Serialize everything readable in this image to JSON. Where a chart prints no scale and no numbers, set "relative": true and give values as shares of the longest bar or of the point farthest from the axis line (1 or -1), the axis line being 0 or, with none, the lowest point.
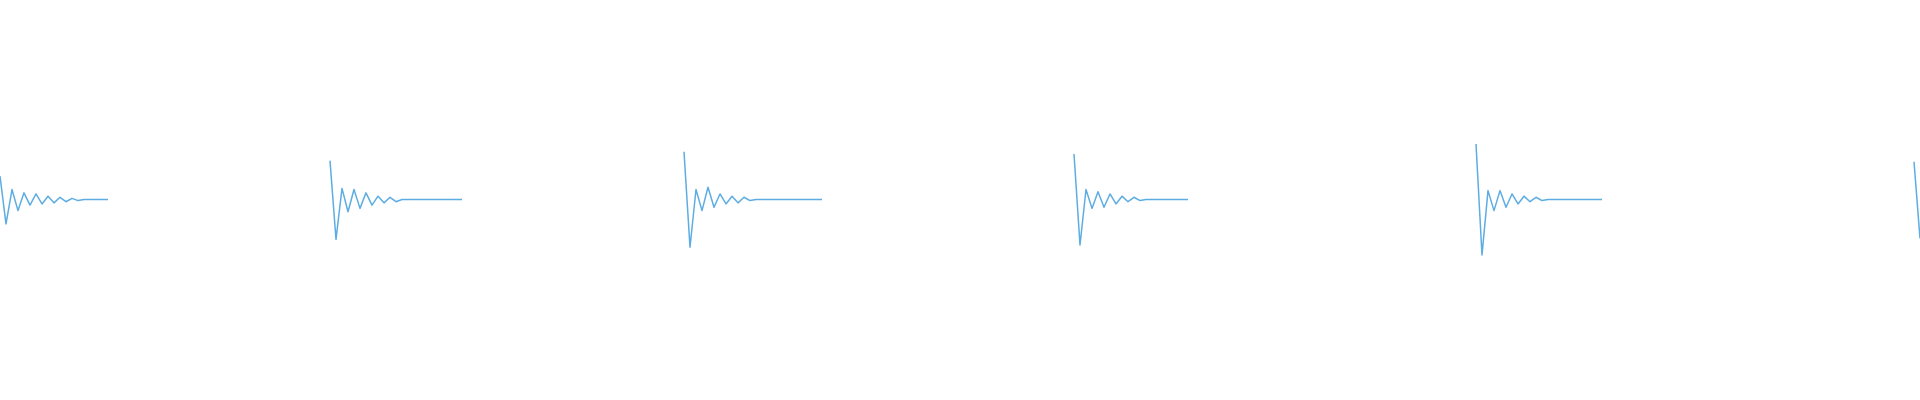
{
  "chart_data": {
    "type": "line",
    "relative": true,
    "categories": [
      null,
      null,
      null,
      null,
      null,
      null,
      null,
      null,
      null,
      null,
      null,
      null,
      null,
      null,
      null,
      null,
      null,
      null,
      null,
      null,
      null,
      null,
      null,
      null,
      null,
      null,
      null,
      null,
      null,
      null,
      null,
      null,
      null,
      null,
      null,
      null,
      null,
      null,
      null,
      null,
      null,
      null,
      null,
      null,
      null,
      null,
      null,
      null,
      null,
      null,
      null,
      null,
      null,
      null,
      null,
      null,
      null,
      null,
      null,
      null,
      null,
      null,
      null,
      null,
      null,
      null,
      null,
      null,
      null,
      null,
      null,
      null,
      null,
      null,
      null,
      null,
      null,
      null,
      null,
      null,
      null,
      null,
      null,
      null,
      null,
      null,
      null,
      null,
      null,
      null,
      null,
      null,
      null,
      null,
      null,
      null,
      null,
      null,
      null,
      null,
      null,
      null,
      null,
      null,
      null,
      null,
      null,
      null,
      null,
      null,
      null,
      null,
      null,
      null,
      null,
      null,
      null,
      null,
      null,
      null,
      null,
      null,
      null,
      null,
      null,
      null,
      null,
      null,
      null,
      null,
      null,
      null,
      null,
      null,
      null,
      null,
      null,
      null,
      null,
      null,
      null,
      null,
      null,
      null,
      null,
      null,
      null,
      null,
      null,
      null,
      null,
      null,
      null,
      null,
      null,
      null,
      null,
      null,
      null,
      null,
      null,
      null,
      null,
      null,
      null,
      null,
      null,
      null,
      null,
      null,
      null,
      null,
      null,
      null,
      null,
      null,
      null,
      null,
      null,
      null,
      null,
      null,
      null,
      null,
      null,
      null,
      null,
      null,
      null,
      null,
      null,
      null,
      null,
      null,
      null,
      null,
      null,
      null,
      null,
      null,
      null,
      null,
      null,
      null,
      null,
      null,
      null,
      null,
      null,
      null,
      null,
      null,
      null,
      null,
      null,
      null,
      null,
      null,
      null,
      null,
      null,
      null,
      null,
      null,
      null,
      null,
      null,
      null,
      null,
      null,
      null,
      null,
      null,
      null,
      null,
      null,
      null,
      null,
      null,
      null,
      null,
      null,
      null,
      null,
      null,
      null,
      null,
      null,
      null,
      null,
      null,
      null,
      null,
      null,
      null,
      null,
      null,
      null,
      null,
      null,
      null,
      null,
      null,
      null,
      null,
      null,
      null,
      null,
      null,
      null,
      null,
      null,
      null,
      null,
      null,
      null,
      null,
      null,
      null,
      null,
      null,
      null,
      null,
      null,
      null,
      null,
      null,
      null,
      null,
      null,
      null,
      null,
      null,
      null,
      null,
      null,
      null,
      null,
      null,
      null,
      null,
      null,
      null,
      null,
      null,
      null,
      null,
      null,
      null,
      null,
      null,
      null,
      null,
      null,
      null,
      null,
      null,
      null,
      null,
      null,
      null
    ],
    "series": [
      {
        "color": "#5dade2",
        "values": [
          0.71,
          0.28,
          0.59,
          0.4,
          0.56,
          0.45,
          0.55,
          0.46,
          0.53,
          0.47,
          0.52,
          0.48,
          0.51,
          0.49,
          0.5,
          0.5,
          0.5,
          0.5,
          0.5,
          null,
          null,
          null,
          null,
          null,
          null,
          null,
          null,
          null,
          null,
          null,
          null,
          null,
          null,
          null,
          null,
          null,
          null,
          null,
          null,
          null,
          null,
          null,
          null,
          null,
          null,
          null,
          null,
          null,
          null,
          null,
          null,
          null,
          null,
          null,
          null,
          null,
          null,
          null,
          null,
          null,
          null,
          null,
          null,
          null,
          null,
          null,
          null,
          null,
          null,
          null,
          null,
          null,
          null,
          null,
          null,
          null,
          null,
          null,
          null,
          null,
          null,
          null,
          null,
          null,
          null,
          null,
          null,
          null,
          null,
          null,
          null,
          null,
          null,
          null,
          null,
          null,
          null,
          null,
          null,
          null,
          null,
          null,
          null,
          null,
          null,
          null,
          null,
          null,
          null,
          null,
          null,
          null,
          null,
          null,
          null,
          null,
          null,
          null,
          null,
          null,
          null,
          null,
          null,
          null,
          null,
          null,
          null,
          null,
          null,
          null,
          null,
          null,
          null,
          null,
          null,
          null,
          null,
          null,
          null,
          null,
          null,
          null,
          null,
          null,
          null,
          null,
          null,
          null,
          null,
          null,
          null,
          null,
          null,
          null,
          null,
          null,
          null,
          null,
          null,
          null,
          null,
          null,
          null,
          null,
          null,
          null,
          null,
          null,
          null,
          null,
          null,
          null,
          null,
          null,
          null,
          null,
          null,
          null,
          null,
          null,
          null,
          null,
          null,
          null,
          null,
          null,
          null,
          null,
          null,
          null,
          null,
          null,
          null,
          null,
          null,
          null,
          null,
          null,
          null,
          null,
          null,
          null,
          null,
          null,
          null,
          null,
          null,
          null,
          null,
          null,
          null,
          null,
          null,
          null,
          null,
          null,
          null,
          null,
          null,
          null,
          null,
          null,
          null,
          null,
          null,
          null,
          null,
          null,
          null,
          null,
          null,
          null,
          null,
          null,
          null,
          null,
          null,
          null,
          null,
          null,
          null,
          null,
          null,
          null,
          null,
          null,
          null,
          null,
          null,
          null,
          null,
          null,
          null,
          null,
          null,
          null,
          null,
          null,
          null,
          null,
          null,
          null,
          null,
          null,
          null,
          null,
          null,
          null,
          null,
          null,
          null,
          null,
          null,
          null,
          null,
          null,
          null,
          null,
          null,
          null,
          null,
          null,
          null,
          null,
          null,
          null,
          null,
          null,
          null,
          null,
          null,
          null,
          null,
          null,
          null,
          null,
          null,
          null,
          null,
          null,
          null,
          null,
          null,
          null,
          null,
          null,
          null,
          null,
          null,
          null,
          null,
          null,
          null,
          null,
          null,
          null,
          null,
          null,
          null,
          null,
          null
        ]
      },
      {
        "color": "#5dade2",
        "values": [
          null,
          null,
          null,
          null,
          null,
          null,
          null,
          null,
          null,
          null,
          null,
          null,
          null,
          null,
          null,
          null,
          null,
          null,
          null,
          null,
          null,
          null,
          null,
          null,
          null,
          null,
          null,
          null,
          null,
          null,
          null,
          null,
          null,
          null,
          null,
          null,
          null,
          null,
          null,
          null,
          null,
          null,
          null,
          null,
          null,
          null,
          null,
          null,
          null,
          null,
          null,
          null,
          null,
          null,
          null,
          0.85,
          0.14,
          0.6,
          0.39,
          0.59,
          0.42,
          0.56,
          0.45,
          0.53,
          0.47,
          0.52,
          0.48,
          0.5,
          0.5,
          0.5,
          0.5,
          0.5,
          0.5,
          0.5,
          0.5,
          0.5,
          0.5,
          0.5,
          null,
          null,
          null,
          null,
          null,
          null,
          null,
          null,
          null,
          null,
          null,
          null,
          null,
          null,
          null,
          null,
          null,
          null,
          null,
          null,
          null,
          null,
          null,
          null,
          null,
          null,
          null,
          null,
          null,
          null,
          null,
          null,
          null,
          null,
          null,
          null,
          null,
          null,
          null,
          null,
          null,
          null,
          null,
          null,
          null,
          null,
          null,
          null,
          null,
          null,
          null,
          null,
          null,
          null,
          null,
          null,
          null,
          null,
          null,
          null,
          null,
          null,
          null,
          null,
          null,
          null,
          null,
          null,
          null,
          null,
          null,
          null,
          null,
          null,
          null,
          null,
          null,
          null,
          null,
          null,
          null,
          null,
          null,
          null,
          null,
          null,
          null,
          null,
          null,
          null,
          null,
          null,
          null,
          null,
          null,
          null,
          null,
          null,
          null,
          null,
          null,
          null,
          null,
          null,
          null,
          null,
          null,
          null,
          null,
          null,
          null,
          null,
          null,
          null,
          null,
          null,
          null,
          null,
          null,
          null,
          null,
          null,
          null,
          null,
          null,
          null,
          null,
          null,
          null,
          null,
          null,
          null,
          null,
          null,
          null,
          null,
          null,
          null,
          null,
          null,
          null,
          null,
          null,
          null,
          null,
          null,
          null,
          null,
          null,
          null,
          null,
          null,
          null,
          null,
          null,
          null,
          null,
          null,
          null,
          null,
          null,
          null,
          null,
          null,
          null,
          null,
          null,
          null,
          null,
          null,
          null,
          null,
          null,
          null,
          null,
          null,
          null,
          null,
          null,
          null,
          null,
          null,
          null,
          null,
          null,
          null,
          null,
          null,
          null,
          null,
          null,
          null,
          null,
          null,
          null,
          null,
          null,
          null,
          null,
          null,
          null,
          null,
          null,
          null,
          null,
          null,
          null,
          null,
          null,
          null,
          null,
          null,
          null,
          null,
          null,
          null,
          null,
          null,
          null,
          null,
          null,
          null,
          null,
          null,
          null,
          null,
          null,
          null,
          null,
          null,
          null,
          null,
          null,
          null,
          null,
          null,
          null,
          null,
          null,
          null,
          null,
          null,
          null
        ]
      },
      {
        "color": "#5dade2",
        "values": [
          null,
          null,
          null,
          null,
          null,
          null,
          null,
          null,
          null,
          null,
          null,
          null,
          null,
          null,
          null,
          null,
          null,
          null,
          null,
          null,
          null,
          null,
          null,
          null,
          null,
          null,
          null,
          null,
          null,
          null,
          null,
          null,
          null,
          null,
          null,
          null,
          null,
          null,
          null,
          null,
          null,
          null,
          null,
          null,
          null,
          null,
          null,
          null,
          null,
          null,
          null,
          null,
          null,
          null,
          null,
          null,
          null,
          null,
          null,
          null,
          null,
          null,
          null,
          null,
          null,
          null,
          null,
          null,
          null,
          null,
          null,
          null,
          null,
          null,
          null,
          null,
          null,
          null,
          null,
          null,
          null,
          null,
          null,
          null,
          null,
          null,
          null,
          null,
          null,
          null,
          null,
          null,
          null,
          null,
          null,
          null,
          null,
          null,
          null,
          null,
          null,
          null,
          null,
          null,
          null,
          null,
          null,
          null,
          null,
          null,
          null,
          null,
          null,
          null,
          0.93,
          0.07,
          0.59,
          0.4,
          0.61,
          0.43,
          0.55,
          0.46,
          0.53,
          0.47,
          0.52,
          0.49,
          0.5,
          0.5,
          0.5,
          0.5,
          0.5,
          0.5,
          0.5,
          0.5,
          0.5,
          0.5,
          0.5,
          0.5,
          null,
          null,
          null,
          null,
          null,
          null,
          null,
          null,
          null,
          null,
          null,
          null,
          null,
          null,
          null,
          null,
          null,
          null,
          null,
          null,
          null,
          null,
          null,
          null,
          null,
          null,
          null,
          null,
          null,
          null,
          null,
          null,
          null,
          null,
          null,
          null,
          null,
          null,
          null,
          null,
          null,
          null,
          null,
          null,
          null,
          null,
          null,
          null,
          null,
          null,
          null,
          null,
          null,
          null,
          null,
          null,
          null,
          null,
          null,
          null,
          null,
          null,
          null,
          null,
          null,
          null,
          null,
          null,
          null,
          null,
          null,
          null,
          null,
          null,
          null,
          null,
          null,
          null,
          null,
          null,
          null,
          null,
          null,
          null,
          null,
          null,
          null,
          null,
          null,
          null,
          null,
          null,
          null,
          null,
          null,
          null,
          null,
          null,
          null,
          null,
          null,
          null,
          null,
          null,
          null,
          null,
          null,
          null,
          null,
          null,
          null,
          null,
          null,
          null,
          null,
          null,
          null,
          null,
          null,
          null,
          null,
          null,
          null,
          null,
          null,
          null,
          null,
          null,
          null,
          null,
          null,
          null,
          null,
          null,
          null,
          null,
          null,
          null,
          null,
          null,
          null,
          null,
          null,
          null,
          null,
          null,
          null,
          null,
          null,
          null,
          null,
          null,
          null,
          null,
          null,
          null,
          null,
          null,
          null,
          null,
          null,
          null,
          null,
          null,
          null,
          null,
          null,
          null,
          null,
          null,
          null,
          null,
          null,
          null,
          null,
          null,
          null,
          null,
          null,
          null,
          null,
          null,
          null
        ]
      },
      {
        "color": "#5dade2",
        "values": [
          null,
          null,
          null,
          null,
          null,
          null,
          null,
          null,
          null,
          null,
          null,
          null,
          null,
          null,
          null,
          null,
          null,
          null,
          null,
          null,
          null,
          null,
          null,
          null,
          null,
          null,
          null,
          null,
          null,
          null,
          null,
          null,
          null,
          null,
          null,
          null,
          null,
          null,
          null,
          null,
          null,
          null,
          null,
          null,
          null,
          null,
          null,
          null,
          null,
          null,
          null,
          null,
          null,
          null,
          null,
          null,
          null,
          null,
          null,
          null,
          null,
          null,
          null,
          null,
          null,
          null,
          null,
          null,
          null,
          null,
          null,
          null,
          null,
          null,
          null,
          null,
          null,
          null,
          null,
          null,
          null,
          null,
          null,
          null,
          null,
          null,
          null,
          null,
          null,
          null,
          null,
          null,
          null,
          null,
          null,
          null,
          null,
          null,
          null,
          null,
          null,
          null,
          null,
          null,
          null,
          null,
          null,
          null,
          null,
          null,
          null,
          null,
          null,
          null,
          null,
          null,
          null,
          null,
          null,
          null,
          null,
          null,
          null,
          null,
          null,
          null,
          null,
          null,
          null,
          null,
          null,
          null,
          null,
          null,
          null,
          null,
          null,
          null,
          null,
          null,
          null,
          null,
          null,
          null,
          null,
          null,
          null,
          null,
          null,
          null,
          null,
          null,
          null,
          null,
          null,
          null,
          null,
          null,
          null,
          null,
          null,
          null,
          null,
          null,
          null,
          null,
          null,
          null,
          null,
          null,
          null,
          null,
          null,
          null,
          null,
          null,
          null,
          null,
          null,
          0.91,
          0.09,
          0.59,
          0.42,
          0.57,
          0.43,
          0.55,
          0.46,
          0.53,
          0.48,
          0.52,
          0.49,
          0.5,
          0.5,
          0.5,
          0.5,
          0.5,
          0.5,
          0.5,
          0.5,
          null,
          null,
          null,
          null,
          null,
          null,
          null,
          null,
          null,
          null,
          null,
          null,
          null,
          null,
          null,
          null,
          null,
          null,
          null,
          null,
          null,
          null,
          null,
          null,
          null,
          null,
          null,
          null,
          null,
          null,
          null,
          null,
          null,
          null,
          null,
          null,
          null,
          null,
          null,
          null,
          null,
          null,
          null,
          null,
          null,
          null,
          null,
          null,
          null,
          null,
          null,
          null,
          null,
          null,
          null,
          null,
          null,
          null,
          null,
          null,
          null,
          null,
          null,
          null,
          null,
          null,
          null,
          null,
          null,
          null,
          null,
          null,
          null,
          null,
          null,
          null,
          null,
          null,
          null,
          null,
          null,
          null,
          null,
          null,
          null,
          null,
          null,
          null,
          null,
          null,
          null,
          null,
          null,
          null,
          null,
          null,
          null,
          null,
          null,
          null,
          null,
          null,
          null,
          null,
          null,
          null,
          null,
          null,
          null,
          null,
          null,
          null,
          null,
          null,
          null,
          null,
          null,
          null,
          null,
          null,
          null,
          null
        ]
      },
      {
        "color": "#5dade2",
        "values": [
          null,
          null,
          null,
          null,
          null,
          null,
          null,
          null,
          null,
          null,
          null,
          null,
          null,
          null,
          null,
          null,
          null,
          null,
          null,
          null,
          null,
          null,
          null,
          null,
          null,
          null,
          null,
          null,
          null,
          null,
          null,
          null,
          null,
          null,
          null,
          null,
          null,
          null,
          null,
          null,
          null,
          null,
          null,
          null,
          null,
          null,
          null,
          null,
          null,
          null,
          null,
          null,
          null,
          null,
          null,
          null,
          null,
          null,
          null,
          null,
          null,
          null,
          null,
          null,
          null,
          null,
          null,
          null,
          null,
          null,
          null,
          null,
          null,
          null,
          null,
          null,
          null,
          null,
          null,
          null,
          null,
          null,
          null,
          null,
          null,
          null,
          null,
          null,
          null,
          null,
          null,
          null,
          null,
          null,
          null,
          null,
          null,
          null,
          null,
          null,
          null,
          null,
          null,
          null,
          null,
          null,
          null,
          null,
          null,
          null,
          null,
          null,
          null,
          null,
          null,
          null,
          null,
          null,
          null,
          null,
          null,
          null,
          null,
          null,
          null,
          null,
          null,
          null,
          null,
          null,
          null,
          null,
          null,
          null,
          null,
          null,
          null,
          null,
          null,
          null,
          null,
          null,
          null,
          null,
          null,
          null,
          null,
          null,
          null,
          null,
          null,
          null,
          null,
          null,
          null,
          null,
          null,
          null,
          null,
          null,
          null,
          null,
          null,
          null,
          null,
          null,
          null,
          null,
          null,
          null,
          null,
          null,
          null,
          null,
          null,
          null,
          null,
          null,
          null,
          null,
          null,
          null,
          null,
          null,
          null,
          null,
          null,
          null,
          null,
          null,
          null,
          null,
          null,
          null,
          null,
          null,
          null,
          null,
          null,
          null,
          null,
          null,
          null,
          null,
          null,
          null,
          null,
          null,
          null,
          null,
          null,
          null,
          null,
          null,
          null,
          null,
          null,
          null,
          null,
          null,
          null,
          null,
          null,
          null,
          null,
          null,
          null,
          null,
          null,
          null,
          null,
          null,
          null,
          null,
          null,
          null,
          null,
          null,
          null,
          null,
          null,
          null,
          null,
          null,
          null,
          null,
          1,
          0,
          0.58,
          0.4,
          0.58,
          0.43,
          0.55,
          0.46,
          0.53,
          0.48,
          0.52,
          0.49,
          0.5,
          0.5,
          0.5,
          0.5,
          0.5,
          0.5,
          0.5,
          0.5,
          0.5,
          0.5,
          null,
          null,
          null,
          null,
          null,
          null,
          null,
          null,
          null,
          null,
          null,
          null,
          null,
          null,
          null,
          null,
          null,
          null,
          null,
          null,
          null,
          null,
          null,
          null,
          null,
          null,
          null,
          null,
          null,
          null,
          null,
          null,
          null,
          null,
          null,
          null,
          null,
          null,
          null,
          null,
          null,
          null,
          null,
          null,
          null,
          null,
          null,
          null,
          null,
          null,
          null,
          null,
          null
        ]
      },
      {
        "color": "#5dade2",
        "values": [
          null,
          null,
          null,
          null,
          null,
          null,
          null,
          null,
          null,
          null,
          null,
          null,
          null,
          null,
          null,
          null,
          null,
          null,
          null,
          null,
          null,
          null,
          null,
          null,
          null,
          null,
          null,
          null,
          null,
          null,
          null,
          null,
          null,
          null,
          null,
          null,
          null,
          null,
          null,
          null,
          null,
          null,
          null,
          null,
          null,
          null,
          null,
          null,
          null,
          null,
          null,
          null,
          null,
          null,
          null,
          null,
          null,
          null,
          null,
          null,
          null,
          null,
          null,
          null,
          null,
          null,
          null,
          null,
          null,
          null,
          null,
          null,
          null,
          null,
          null,
          null,
          null,
          null,
          null,
          null,
          null,
          null,
          null,
          null,
          null,
          null,
          null,
          null,
          null,
          null,
          null,
          null,
          null,
          null,
          null,
          null,
          null,
          null,
          null,
          null,
          null,
          null,
          null,
          null,
          null,
          null,
          null,
          null,
          null,
          null,
          null,
          null,
          null,
          null,
          null,
          null,
          null,
          null,
          null,
          null,
          null,
          null,
          null,
          null,
          null,
          null,
          null,
          null,
          null,
          null,
          null,
          null,
          null,
          null,
          null,
          null,
          null,
          null,
          null,
          null,
          null,
          null,
          null,
          null,
          null,
          null,
          null,
          null,
          null,
          null,
          null,
          null,
          null,
          null,
          null,
          null,
          null,
          null,
          null,
          null,
          null,
          null,
          null,
          null,
          null,
          null,
          null,
          null,
          null,
          null,
          null,
          null,
          null,
          null,
          null,
          null,
          null,
          null,
          null,
          null,
          null,
          null,
          null,
          null,
          null,
          null,
          null,
          null,
          null,
          null,
          null,
          null,
          null,
          null,
          null,
          null,
          null,
          null,
          null,
          null,
          null,
          null,
          null,
          null,
          null,
          null,
          null,
          null,
          null,
          null,
          null,
          null,
          null,
          null,
          null,
          null,
          null,
          null,
          null,
          null,
          null,
          null,
          null,
          null,
          null,
          null,
          null,
          null,
          null,
          null,
          null,
          null,
          null,
          null,
          null,
          null,
          null,
          null,
          null,
          null,
          null,
          null,
          null,
          null,
          null,
          null,
          null,
          null,
          null,
          null,
          null,
          null,
          null,
          null,
          null,
          null,
          null,
          null,
          null,
          null,
          null,
          null,
          null,
          null,
          null,
          null,
          null,
          null,
          null,
          null,
          null,
          null,
          null,
          null,
          null,
          null,
          null,
          null,
          null,
          null,
          null,
          null,
          null,
          null,
          null,
          null,
          null,
          null,
          null,
          null,
          null,
          null,
          null,
          null,
          null,
          null,
          null,
          null,
          null,
          null,
          null,
          null,
          null,
          null,
          null,
          null,
          null,
          null,
          null,
          null,
          null,
          null,
          null,
          null,
          null,
          null,
          null,
          null,
          null,
          0.84,
          0.15
        ]
      }
    ]
  }
}
